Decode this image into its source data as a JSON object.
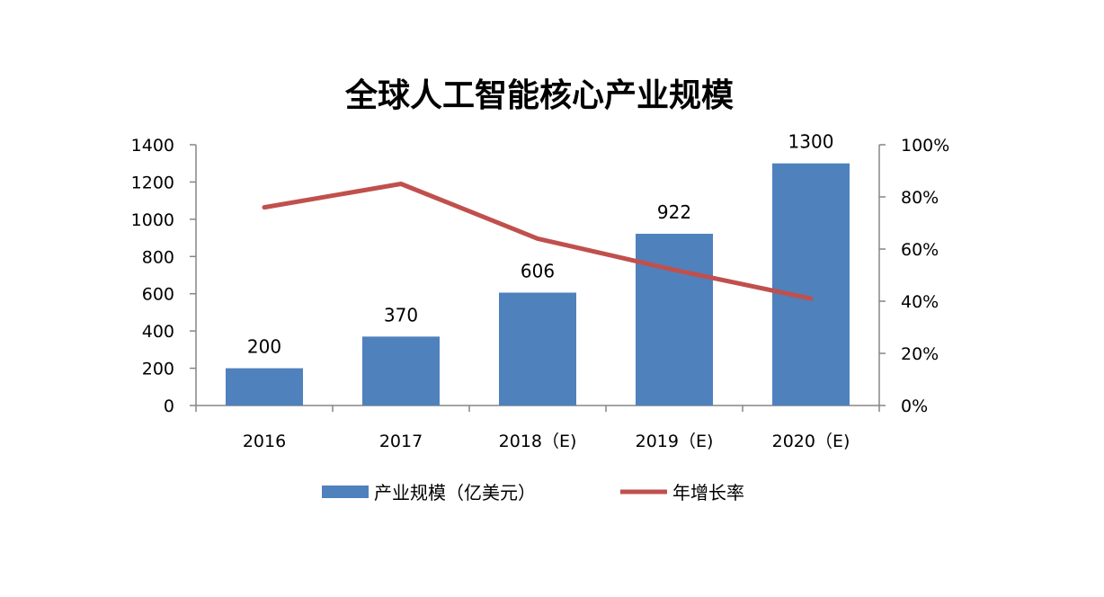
{
  "chart_data": {
    "type": "bar",
    "title": "全球人工智能核心产业规模",
    "categories": [
      "2016",
      "2017",
      "2018（E)",
      "2019（E)",
      "2020（E)"
    ],
    "series": [
      {
        "name": "产业规模（亿美元）",
        "type": "bar",
        "axis": "left",
        "color": "#4F81BD",
        "values": [
          200,
          370,
          606,
          922,
          1300
        ],
        "data_labels": [
          "200",
          "370",
          "606",
          "922",
          "1300"
        ]
      },
      {
        "name": "年增长率",
        "type": "line",
        "axis": "right",
        "color": "#C0504D",
        "values": [
          0.76,
          0.85,
          0.64,
          0.52,
          0.41
        ]
      }
    ],
    "y_left": {
      "min": 0,
      "max": 1400,
      "ticks": [
        "0",
        "200",
        "400",
        "600",
        "800",
        "1000",
        "1200",
        "1400"
      ]
    },
    "y_right": {
      "min": 0,
      "max": 1.0,
      "ticks": [
        "0%",
        "20%",
        "40%",
        "60%",
        "80%",
        "100%"
      ]
    },
    "grid": false,
    "legend": "bottom"
  }
}
